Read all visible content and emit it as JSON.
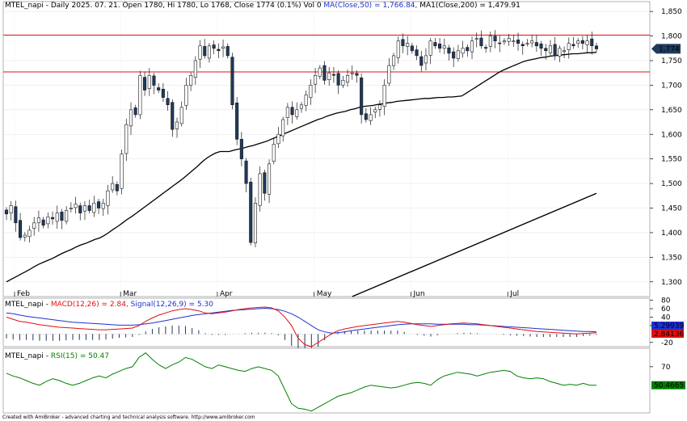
{
  "header": {
    "main_prefix": "MTEL_napi - Daily 2025. 07. 21. Open 1780, Hi 1780, Lo 1768, Close 1774 (0.1%) Vol 0 ",
    "ma50_label": "MA(Close,50) = 1,766.84,",
    "ma200_label": " MA1(Close,200) = 1,479.91",
    "macd_prefix": "MTEL_napi - ",
    "macd_label": "MACD(12,26) = 2.84,",
    "signal_label": " Signal(12,26,9) = 5.30",
    "rsi_prefix": "MTEL_napi - ",
    "rsi_label": "RSI(15) = 50.47"
  },
  "footer": "Created with AmiBroker - advanced charting and technical analysis software. http://www.amibroker.com",
  "colors": {
    "up": "#ffffff",
    "down": "#1f3a5c",
    "resistance": "#e01010",
    "ma": "#000000",
    "macd": "#e01010",
    "signal": "#2030d0",
    "rsi": "#008000",
    "badge": "#1f3a5c"
  },
  "chart_data": [
    {
      "type": "candlestick",
      "name": "MTEL_napi - Daily",
      "months": [
        "Feb",
        "Mar",
        "Apr",
        "May",
        "Jun",
        "Jul"
      ],
      "ylim": [
        1270,
        1870
      ],
      "yticks": [
        1300,
        1350,
        1400,
        1450,
        1500,
        1550,
        1600,
        1650,
        1700,
        1750,
        1800,
        1850
      ],
      "ytick_labels": [
        "1,300",
        "1,350",
        "1,400",
        "1,450",
        "1,500",
        "1,550",
        "1,600",
        "1,650",
        "1,700",
        "1,750",
        "1,800",
        "1,850"
      ],
      "last_close_label": "1,774",
      "resistance_levels": [
        1802,
        1727
      ],
      "closes": [
        1438,
        1455,
        1420,
        1390,
        1395,
        1405,
        1420,
        1430,
        1415,
        1432,
        1428,
        1440,
        1425,
        1445,
        1450,
        1458,
        1440,
        1455,
        1445,
        1460,
        1450,
        1460,
        1485,
        1500,
        1485,
        1560,
        1620,
        1650,
        1640,
        1720,
        1690,
        1720,
        1700,
        1690,
        1675,
        1660,
        1610,
        1625,
        1655,
        1700,
        1720,
        1750,
        1780,
        1760,
        1780,
        1775,
        1770,
        1778,
        1760,
        1660,
        1590,
        1550,
        1500,
        1380,
        1460,
        1520,
        1480,
        1540,
        1580,
        1600,
        1630,
        1655,
        1640,
        1650,
        1660,
        1680,
        1700,
        1720,
        1735,
        1710,
        1725,
        1720,
        1700,
        1710,
        1720,
        1725,
        1720,
        1640,
        1630,
        1640,
        1650,
        1660,
        1700,
        1740,
        1760,
        1790,
        1780,
        1785,
        1770,
        1760,
        1740,
        1760,
        1790,
        1780,
        1775,
        1780,
        1765,
        1755,
        1770,
        1775,
        1770,
        1790,
        1795,
        1780,
        1775,
        1800,
        1790,
        1785,
        1790,
        1795,
        1790,
        1785,
        1780,
        1785,
        1790,
        1780,
        1775,
        1770,
        1780,
        1760,
        1775,
        1770,
        1785,
        1780,
        1790,
        1785,
        1790,
        1780,
        1774
      ],
      "ma50": [
        1300,
        1305,
        1310,
        1315,
        1320,
        1325,
        1331,
        1336,
        1340,
        1344,
        1348,
        1353,
        1358,
        1362,
        1366,
        1371,
        1375,
        1378,
        1382,
        1386,
        1389,
        1394,
        1400,
        1407,
        1413,
        1420,
        1427,
        1433,
        1440,
        1447,
        1454,
        1461,
        1468,
        1475,
        1482,
        1489,
        1496,
        1503,
        1510,
        1518,
        1526,
        1534,
        1543,
        1551,
        1557,
        1562,
        1565,
        1565,
        1565,
        1568,
        1570,
        1572,
        1575,
        1577,
        1580,
        1583,
        1586,
        1590,
        1594,
        1598,
        1602,
        1606,
        1610,
        1614,
        1618,
        1622,
        1626,
        1630,
        1633,
        1637,
        1640,
        1643,
        1645,
        1647,
        1650,
        1652,
        1655,
        1657,
        1658,
        1659,
        1661,
        1662,
        1664,
        1665,
        1667,
        1668,
        1669,
        1670,
        1671,
        1672,
        1673,
        1673,
        1674,
        1675,
        1675,
        1676,
        1676,
        1677,
        1678,
        1684,
        1690,
        1696,
        1702,
        1708,
        1714,
        1720,
        1726,
        1731,
        1735,
        1739,
        1743,
        1747,
        1750,
        1752,
        1754,
        1756,
        1757,
        1759,
        1760,
        1761,
        1762,
        1763,
        1764,
        1764,
        1765,
        1766,
        1766,
        1767
      ],
      "ma200": {
        "x": [
          75,
          126
        ],
        "y": [
          1270,
          1480
        ],
        "label_value": "1,479.91"
      }
    },
    {
      "type": "line",
      "name": "MACD",
      "series": [
        {
          "name": "MACD(12,26)",
          "values": [
            40,
            35,
            30,
            28,
            25,
            22,
            20,
            18,
            16,
            15,
            14,
            13,
            12,
            11,
            10,
            10,
            11,
            12,
            13,
            14,
            20,
            30,
            38,
            45,
            50,
            55,
            58,
            60,
            58,
            55,
            50,
            48,
            50,
            52,
            55,
            58,
            60,
            62,
            63,
            64,
            62,
            55,
            40,
            20,
            -10,
            -25,
            -30,
            -20,
            -10,
            0,
            8,
            12,
            15,
            18,
            20,
            22,
            24,
            26,
            28,
            30,
            28,
            25,
            22,
            20,
            18,
            20,
            22,
            24,
            25,
            26,
            25,
            24,
            22,
            20,
            18,
            16,
            14,
            12,
            10,
            8,
            6,
            5,
            4,
            3,
            2,
            1,
            0,
            1,
            2,
            3
          ]
        },
        {
          "name": "Signal(12,26,9)",
          "values": [
            50,
            48,
            45,
            42,
            40,
            38,
            36,
            34,
            32,
            30,
            28,
            27,
            26,
            25,
            24,
            23,
            22,
            21,
            21,
            21,
            22,
            24,
            26,
            29,
            32,
            35,
            38,
            41,
            44,
            46,
            48,
            50,
            52,
            54,
            56,
            57,
            58,
            59,
            60,
            61,
            60,
            58,
            54,
            48,
            40,
            30,
            20,
            10,
            5,
            2,
            3,
            5,
            8,
            10,
            12,
            14,
            16,
            18,
            20,
            22,
            23,
            24,
            24,
            24,
            24,
            23,
            23,
            23,
            23,
            23,
            22,
            22,
            21,
            20,
            19,
            18,
            17,
            16,
            15,
            14,
            13,
            12,
            11,
            10,
            9,
            8,
            7,
            6,
            6,
            5
          ]
        }
      ],
      "ylim": [
        -30,
        85
      ],
      "yticks": [
        80,
        60,
        40,
        20,
        -20
      ],
      "ytick_labels": [
        "80",
        "60",
        "40",
        "20",
        "-20"
      ],
      "signal_badge": "5.29939",
      "macd_badge": "2.84136"
    },
    {
      "type": "line",
      "name": "RSI(15)",
      "values": [
        63,
        60,
        58,
        55,
        52,
        50,
        54,
        57,
        55,
        52,
        50,
        52,
        55,
        58,
        60,
        58,
        62,
        65,
        68,
        70,
        80,
        85,
        78,
        72,
        68,
        72,
        75,
        80,
        78,
        74,
        70,
        68,
        72,
        70,
        68,
        66,
        65,
        68,
        70,
        68,
        66,
        60,
        45,
        30,
        25,
        24,
        22,
        26,
        30,
        34,
        38,
        40,
        42,
        45,
        48,
        50,
        49,
        48,
        47,
        48,
        50,
        52,
        53,
        52,
        50,
        56,
        60,
        62,
        64,
        63,
        62,
        60,
        62,
        64,
        65,
        66,
        65,
        60,
        58,
        57,
        58,
        57,
        54,
        52,
        50,
        51,
        50,
        52,
        50,
        50
      ],
      "ylim": [
        20,
        90
      ],
      "yticks": [
        70
      ],
      "ytick_labels": [
        "70"
      ],
      "badge": "50.4665"
    }
  ]
}
